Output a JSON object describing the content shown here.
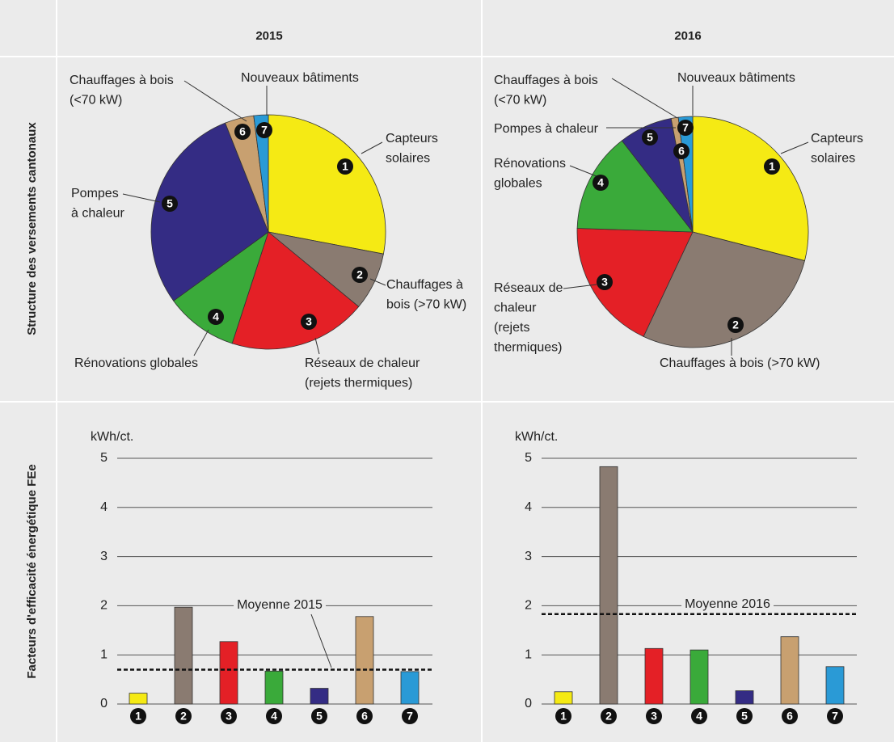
{
  "header": {
    "columns": [
      "2015",
      "2016"
    ],
    "rows": [
      "Structure des versements cantonaux",
      "Facteurs d'efficacité énergétique FEe"
    ]
  },
  "chart_data": [
    {
      "type": "pie",
      "categories": [
        [
          "Capteurs",
          "solaires"
        ],
        [
          "Chauffages à",
          "bois (>70 kW)"
        ],
        [
          "Réseaux de chaleur",
          "(rejets thermiques)"
        ],
        [
          "Rénovations globales"
        ],
        [
          "Pompes",
          "à chaleur"
        ],
        [
          "Chauffages à bois",
          "(<70 kW)"
        ],
        [
          "Nouveaux bâtiments"
        ]
      ],
      "markers": [
        "1",
        "2",
        "3",
        "4",
        "5",
        "6",
        "7"
      ],
      "values": [
        28,
        8,
        19,
        10,
        29,
        4,
        2
      ],
      "colors": [
        "#f5ea14",
        "#8a7b71",
        "#e42026",
        "#3aaa3a",
        "#342c84",
        "#c8a070",
        "#2a9ad6"
      ]
    },
    {
      "type": "pie",
      "categories": [
        [
          "Capteurs",
          "solaires"
        ],
        [
          "Chauffages à bois (>70 kW)"
        ],
        [
          "Réseaux de",
          "chaleur",
          "(rejets",
          "thermiques)"
        ],
        [
          "Rénovations",
          "globales"
        ],
        [
          "Pompes à chaleur"
        ],
        [
          "Chauffages à bois",
          "(<70 kW)"
        ],
        [
          "Nouveaux bâtiments"
        ]
      ],
      "markers": [
        "1",
        "2",
        "3",
        "4",
        "5",
        "6",
        "7"
      ],
      "values": [
        29,
        28,
        18.5,
        14,
        7.5,
        1,
        2
      ],
      "colors": [
        "#f5ea14",
        "#8a7b71",
        "#e42026",
        "#3aaa3a",
        "#342c84",
        "#c8a070",
        "#2a9ad6"
      ]
    },
    {
      "type": "bar",
      "y_label": "kWh/ct.",
      "categories": [
        "1",
        "2",
        "3",
        "4",
        "5",
        "6",
        "7"
      ],
      "values": [
        0.22,
        1.97,
        1.27,
        0.67,
        0.32,
        1.78,
        0.66
      ],
      "colors": [
        "#f5ea14",
        "#8a7b71",
        "#e42026",
        "#3aaa3a",
        "#342c84",
        "#c8a070",
        "#2a9ad6"
      ],
      "ylim": [
        0,
        5
      ],
      "yticks": [
        0,
        1,
        2,
        3,
        4,
        5
      ],
      "grid": true,
      "mean": 0.7,
      "mean_label": "Moyenne 2015"
    },
    {
      "type": "bar",
      "y_label": "kWh/ct.",
      "categories": [
        "1",
        "2",
        "3",
        "4",
        "5",
        "6",
        "7"
      ],
      "values": [
        0.25,
        4.83,
        1.13,
        1.1,
        0.27,
        1.37,
        0.76
      ],
      "colors": [
        "#f5ea14",
        "#8a7b71",
        "#e42026",
        "#3aaa3a",
        "#342c84",
        "#c8a070",
        "#2a9ad6"
      ],
      "ylim": [
        0,
        5
      ],
      "yticks": [
        0,
        1,
        2,
        3,
        4,
        5
      ],
      "grid": true,
      "mean": 1.83,
      "mean_label": "Moyenne 2016"
    }
  ]
}
